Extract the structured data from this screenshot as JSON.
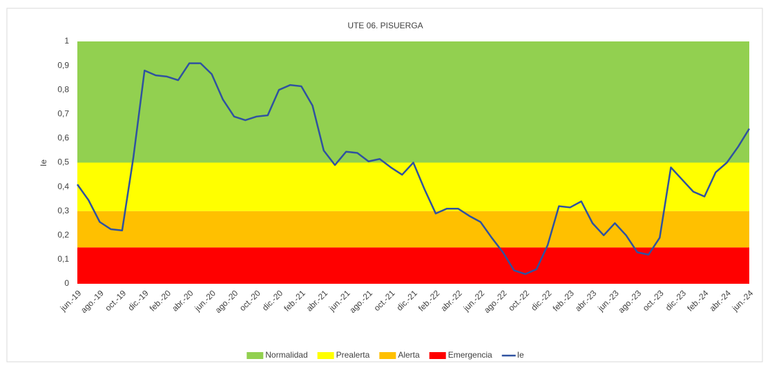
{
  "chart_data": {
    "type": "line",
    "title": "UTE 06. PISUERGA",
    "y_label": "Ie",
    "ylim": [
      0,
      1
    ],
    "yticks": [
      0,
      {
        "value": 0.1,
        "label": "0,1"
      },
      {
        "value": 0.2,
        "label": "0,2"
      },
      {
        "value": 0.3,
        "label": "0,3"
      },
      {
        "value": 0.4,
        "label": "0,4"
      },
      {
        "value": 0.5,
        "label": "0,5"
      },
      {
        "value": 0.6,
        "label": "0,6"
      },
      {
        "value": 0.7,
        "label": "0,7"
      },
      {
        "value": 0.8,
        "label": "0,8"
      },
      {
        "value": 0.9,
        "label": "0,9"
      },
      1
    ],
    "categories": [
      "jun.-19",
      null,
      "ago.-19",
      null,
      "oct.-19",
      null,
      "dic.-19",
      null,
      "feb.-20",
      null,
      "abr.-20",
      null,
      "jun.-20",
      null,
      "ago.-20",
      null,
      "oct.-20",
      null,
      "dic.-20",
      null,
      "feb.-21",
      null,
      "abr.-21",
      null,
      "jun.-21",
      null,
      "ago.-21",
      null,
      "oct.-21",
      null,
      "dic.-21",
      null,
      "feb.-22",
      null,
      "abr.-22",
      null,
      "jun.-22",
      null,
      "ago.-22",
      null,
      "oct.-22",
      null,
      "dic.-22",
      null,
      "feb.-23",
      null,
      "abr.-23",
      null,
      "jun.-23",
      null,
      "ago.-23",
      null,
      "oct.-23",
      null,
      "dic.-23",
      null,
      "feb.-24",
      null,
      "abr.-24",
      null,
      "jun.-24"
    ],
    "bands": [
      {
        "name": "Normalidad",
        "color": "#92d050",
        "value": 0.5
      },
      {
        "name": "Prealerta",
        "color": "#ffff00",
        "value": 0.2
      },
      {
        "name": "Alerta",
        "color": "#ffc000",
        "value": 0.15
      },
      {
        "name": "Emergencia",
        "color": "#ff0000",
        "value": 0.15
      }
    ],
    "series": [
      {
        "name": "Ie",
        "color": "#2f52a0",
        "values": [
          0.41,
          0.345,
          0.255,
          0.225,
          0.22,
          0.52,
          0.88,
          0.86,
          0.855,
          0.84,
          0.91,
          0.91,
          0.865,
          0.76,
          0.69,
          0.675,
          0.69,
          0.695,
          0.8,
          0.82,
          0.815,
          0.735,
          0.55,
          0.49,
          0.545,
          0.54,
          0.505,
          0.515,
          0.48,
          0.45,
          0.5,
          0.39,
          0.29,
          0.31,
          0.31,
          0.28,
          0.255,
          0.19,
          0.13,
          0.055,
          0.04,
          0.06,
          0.16,
          0.32,
          0.315,
          0.34,
          0.25,
          0.2,
          0.25,
          0.2,
          0.13,
          0.12,
          0.19,
          0.48,
          0.43,
          0.38,
          0.36,
          0.46,
          0.5,
          0.565,
          0.64
        ]
      }
    ]
  }
}
